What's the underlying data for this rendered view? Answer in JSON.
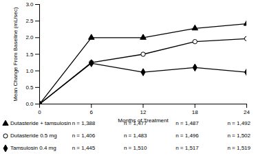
{
  "chart_data": {
    "type": "line",
    "x_label": "Months of Treatment",
    "y_label": "Mean Change From Baseline (mL/sec)",
    "x": [
      0,
      6,
      12,
      18,
      24
    ],
    "xlim": [
      0,
      24
    ],
    "xticks": [
      0,
      6,
      12,
      18,
      24
    ],
    "ylim": [
      0,
      3
    ],
    "yticks": [
      {
        "value": 0,
        "label": "0.0"
      },
      0.5,
      {
        "value": 1,
        "label": "1.0"
      },
      1.5,
      {
        "value": 2,
        "label": "2.0"
      },
      2.5,
      {
        "value": 3,
        "label": "3.0"
      }
    ],
    "grid": false,
    "series": [
      {
        "name": "Dutasteride + tamsulosin",
        "color": "#000000",
        "marker": "triangle",
        "line_style": "solid",
        "values": [
          0,
          2.0,
          2.0,
          2.28,
          2.42
        ],
        "n_labels": [
          null,
          "n = 1,388",
          "n = 1,477",
          "n = 1,487",
          "n = 1,492"
        ]
      },
      {
        "name": "Dutasteride 0.5 mg",
        "color": "#000000",
        "marker": "circle_open",
        "line_style": "solid",
        "values": [
          0,
          1.25,
          1.5,
          1.88,
          1.97
        ],
        "n_labels": [
          null,
          "n = 1,406",
          "n = 1,483",
          "n = 1,496",
          "n = 1,502"
        ]
      },
      {
        "name": "Tamsulosin 0.4 mg",
        "color": "#000000",
        "marker": "diamond",
        "line_style": "solid",
        "values": [
          0,
          1.23,
          0.96,
          1.1,
          0.96
        ],
        "n_labels": [
          null,
          "n = 1,445",
          "n = 1,510",
          "n = 1,517",
          "n = 1,519"
        ]
      }
    ]
  }
}
